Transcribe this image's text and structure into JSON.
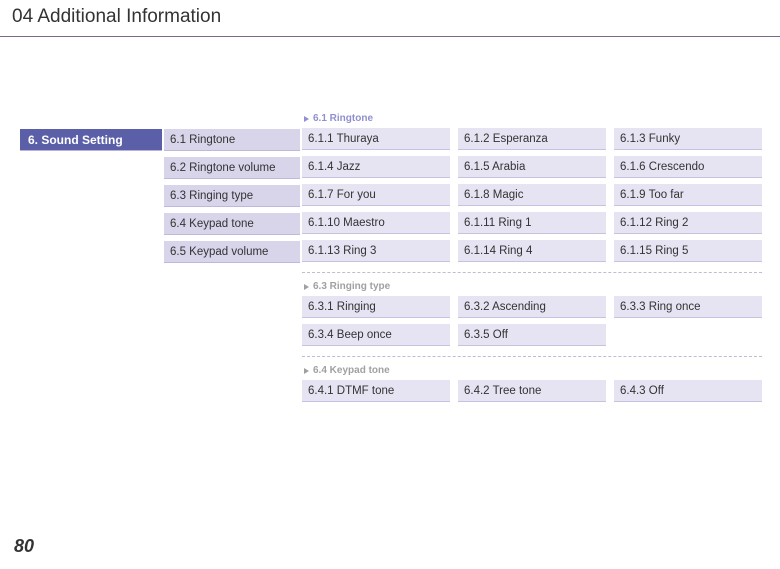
{
  "page_title": "04 Additional Information",
  "page_number": "80",
  "level1": {
    "label": "6. Sound Setting"
  },
  "level2": {
    "items": [
      "6.1  Ringtone",
      "6.2  Ringtone volume",
      "6.3  Ringing type",
      "6.4  Keypad tone",
      "6.5  Keypad volume"
    ]
  },
  "groups": [
    {
      "header": "6.1  Ringtone",
      "active": "true",
      "items": [
        "6.1.1  Thuraya",
        "6.1.2  Esperanza",
        "6.1.3  Funky",
        "6.1.4  Jazz",
        "6.1.5  Arabia",
        "6.1.6  Crescendo",
        "6.1.7  For you",
        "6.1.8  Magic",
        "6.1.9  Too far",
        "6.1.10  Maestro",
        "6.1.11  Ring 1",
        "6.1.12  Ring 2",
        "6.1.13  Ring 3",
        "6.1.14  Ring 4",
        "6.1.15  Ring 5"
      ]
    },
    {
      "header": "6.3  Ringing type",
      "active": "false",
      "items": [
        "6.3.1  Ringing",
        "6.3.2  Ascending",
        " 6.3.3  Ring once",
        "6.3.4  Beep once",
        "6.3.5  Off"
      ]
    },
    {
      "header": "6.4  Keypad tone",
      "active": "false",
      "items": [
        "6.4.1  DTMF tone",
        "6.4.2  Tree tone",
        "6.4.3  Off"
      ]
    }
  ],
  "colors": {
    "level1_bg": "#5a5fa8",
    "level2_bg": "#d8d4ea",
    "level3_bg": "#e6e3f2",
    "divider": "#7a6a8a"
  }
}
